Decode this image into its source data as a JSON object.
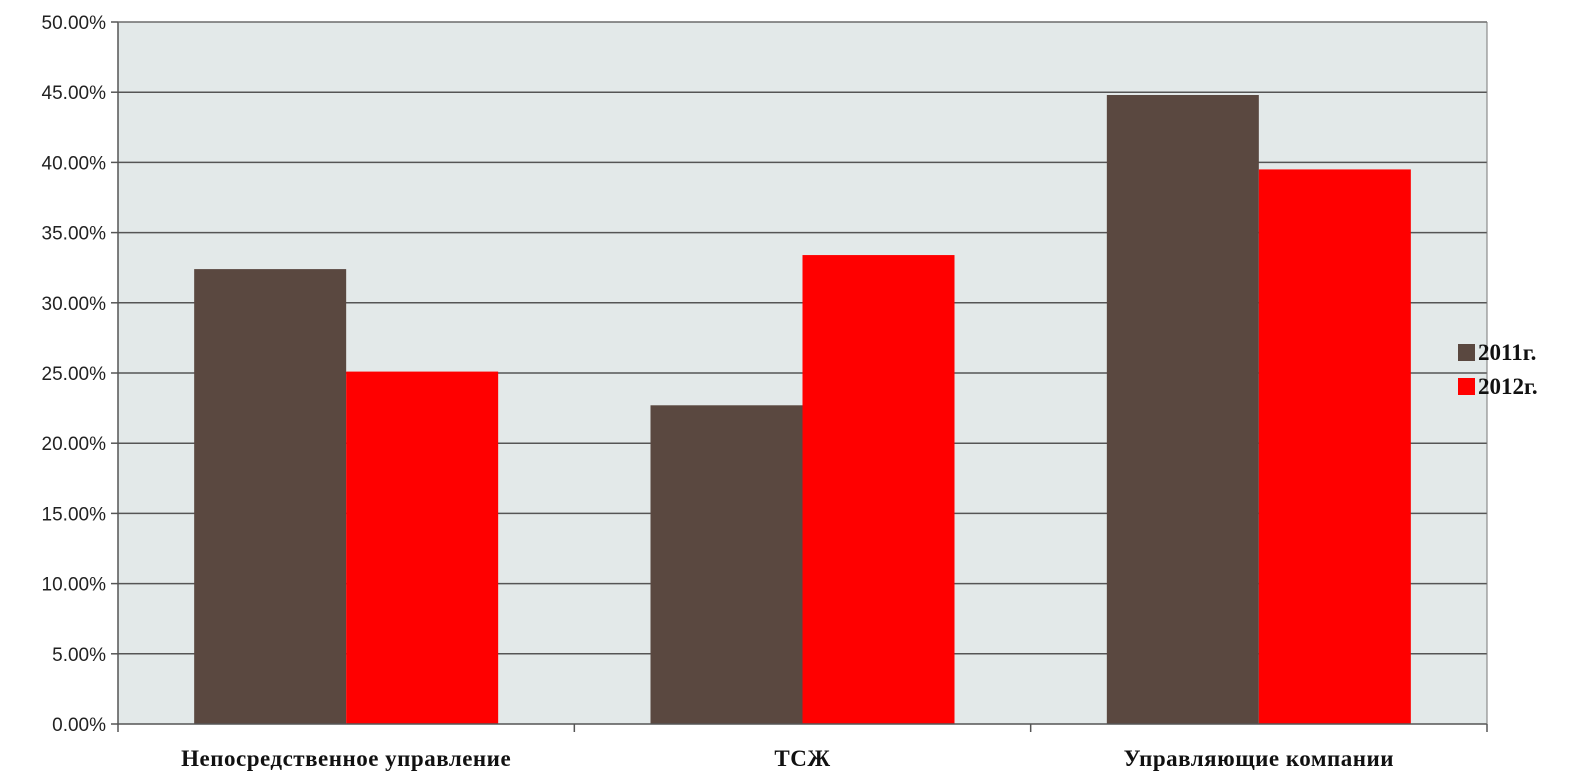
{
  "chart_data": {
    "type": "bar",
    "title": "",
    "xlabel": "",
    "ylabel": "",
    "categories": [
      "Непосредственное управление",
      "ТСЖ",
      "Управляющие компании"
    ],
    "series": [
      {
        "name": "2011г.",
        "color": "#5a4840",
        "values": [
          32.4,
          22.7,
          44.8
        ]
      },
      {
        "name": "2012г.",
        "color": "#ff0000",
        "values": [
          25.1,
          33.4,
          39.5
        ]
      }
    ],
    "ylim": [
      0,
      50
    ],
    "yticks": [
      0,
      5,
      10,
      15,
      20,
      25,
      30,
      35,
      40,
      45,
      50
    ],
    "ytick_labels": [
      "0.00%",
      "5.00%",
      "10.00%",
      "15.00%",
      "20.00%",
      "25.00%",
      "30.00%",
      "35.00%",
      "40.00%",
      "45.00%",
      "50.00%"
    ],
    "grid": true,
    "legend_position": "right",
    "plot_background": "#e3e9e9"
  }
}
